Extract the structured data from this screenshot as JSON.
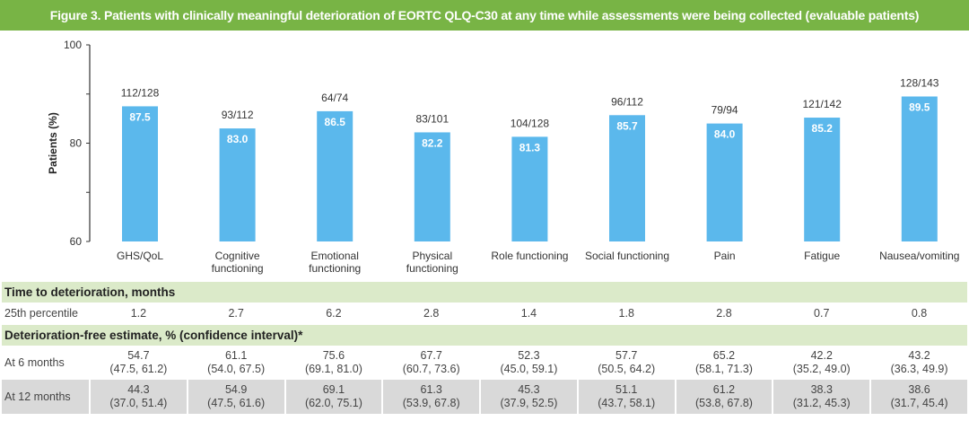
{
  "title": "Figure 3. Patients with clinically meaningful deterioration of EORTC QLQ-C30 at any time while assessments were being collected (evaluable patients)",
  "colors": {
    "title_bar": "#78b445",
    "bars": "#5bb8ec",
    "section_rows": "#dbeac9",
    "shaded_row": "#d9d9d9"
  },
  "chart_data": {
    "type": "bar",
    "ylabel": "Patients (%)",
    "ylim": [
      60,
      100
    ],
    "yticks": [
      60,
      80,
      100
    ],
    "grid": false,
    "categories": [
      "GHS/QoL",
      "Cognitive functioning",
      "Emotional functioning",
      "Physical functioning",
      "Role functioning",
      "Social functioning",
      "Pain",
      "Fatigue",
      "Nausea/vomiting"
    ],
    "values": [
      87.5,
      83.0,
      86.5,
      82.2,
      81.3,
      85.7,
      84.0,
      85.2,
      89.5
    ],
    "value_labels": [
      "87.5",
      "83.0",
      "86.5",
      "82.2",
      "81.3",
      "85.7",
      "84.0",
      "85.2",
      "89.5"
    ],
    "counts": [
      "112/128",
      "93/112",
      "64/74",
      "83/101",
      "104/128",
      "96/112",
      "79/94",
      "121/142",
      "128/143"
    ]
  },
  "table": {
    "section1": "Time to deterioration, months",
    "p25_label": "25th percentile",
    "p25": [
      "1.2",
      "2.7",
      "6.2",
      "2.8",
      "1.4",
      "1.8",
      "2.8",
      "0.7",
      "0.8"
    ],
    "section2": "Deterioration-free estimate, % (confidence interval)*",
    "m6_label": "At 6 months",
    "m6": [
      [
        "54.7",
        "(47.5, 61.2)"
      ],
      [
        "61.1",
        "(54.0, 67.5)"
      ],
      [
        "75.6",
        "(69.1, 81.0)"
      ],
      [
        "67.7",
        "(60.7, 73.6)"
      ],
      [
        "52.3",
        "(45.0, 59.1)"
      ],
      [
        "57.7",
        "(50.5, 64.2)"
      ],
      [
        "65.2",
        "(58.1, 71.3)"
      ],
      [
        "42.2",
        "(35.2, 49.0)"
      ],
      [
        "43.2",
        "(36.3, 49.9)"
      ]
    ],
    "m12_label": "At 12 months",
    "m12": [
      [
        "44.3",
        "(37.0, 51.4)"
      ],
      [
        "54.9",
        "(47.5, 61.6)"
      ],
      [
        "69.1",
        "(62.0, 75.1)"
      ],
      [
        "61.3",
        "(53.9, 67.8)"
      ],
      [
        "45.3",
        "(37.9, 52.5)"
      ],
      [
        "51.1",
        "(43.7, 58.1)"
      ],
      [
        "61.2",
        "(53.8, 67.8)"
      ],
      [
        "38.3",
        "(31.2, 45.3)"
      ],
      [
        "38.6",
        "(31.7, 45.4)"
      ]
    ]
  }
}
